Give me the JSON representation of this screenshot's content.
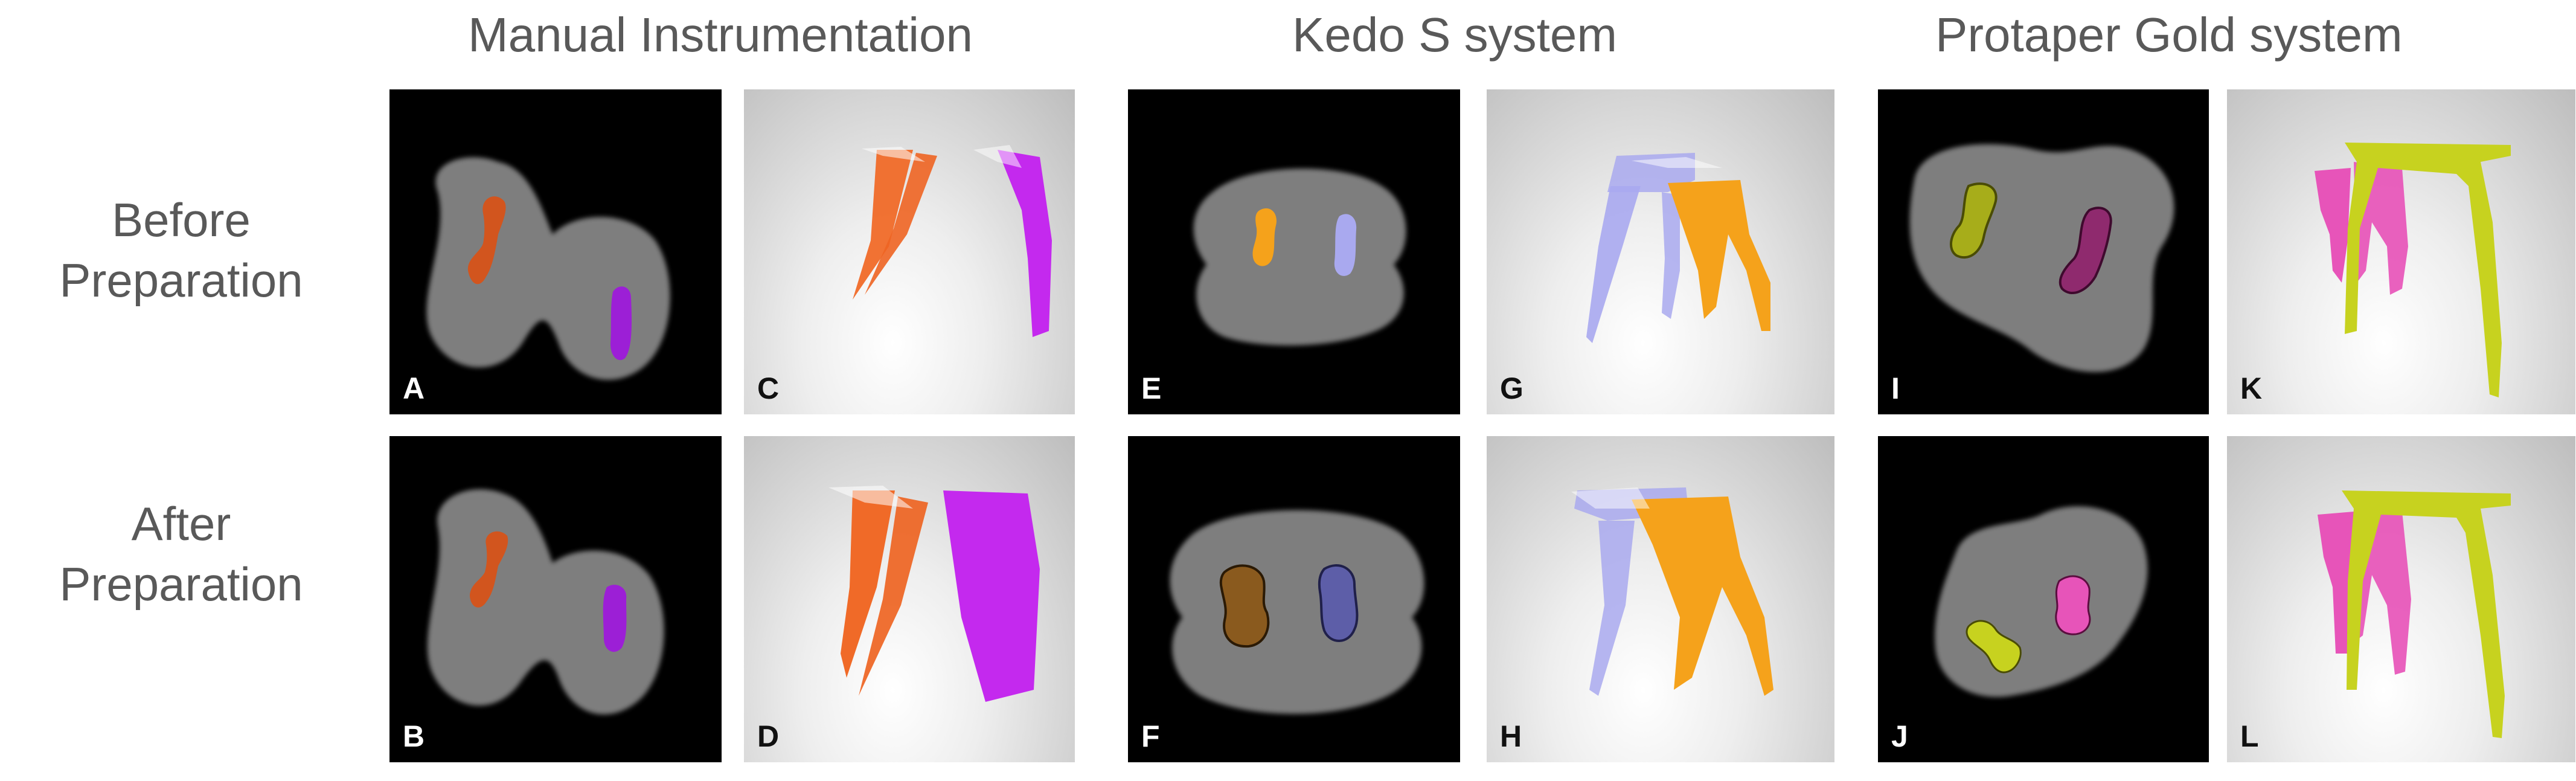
{
  "column_titles": [
    "Manual Instrumentation",
    "Kedo S system",
    "Protaper Gold system"
  ],
  "row_labels": {
    "before": [
      "Before",
      "Preparation"
    ],
    "after": [
      "After",
      "Preparation"
    ]
  },
  "panels": {
    "A": "A",
    "B": "B",
    "C": "C",
    "D": "D",
    "E": "E",
    "F": "F",
    "G": "G",
    "H": "H",
    "I": "I",
    "J": "J",
    "K": "K",
    "L": "L"
  },
  "colors": {
    "manual_canal_1": "#d2551e",
    "manual_canal_2": "#9c1fd6",
    "kedo_canal_1": "#f5a21b",
    "kedo_canal_2": "#a9a9ef",
    "protaper_canal_1": "#c7d21f",
    "protaper_canal_2": "#e754b9"
  }
}
